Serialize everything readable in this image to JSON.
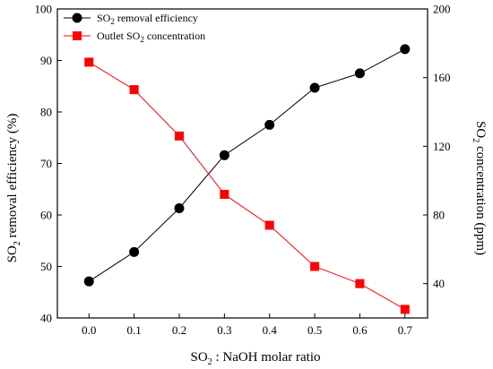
{
  "chart_data": {
    "type": "line",
    "x": [
      0.0,
      0.1,
      0.2,
      0.3,
      0.4,
      0.5,
      0.6,
      0.7
    ],
    "x_tick_labels": [
      "0.0",
      "0.1",
      "0.2",
      "0.3",
      "0.4",
      "0.5",
      "0.6",
      "0.7"
    ],
    "xlim": [
      -0.07,
      0.75
    ],
    "xlabel": {
      "base": "SO",
      "sub": "2",
      "rest": " : NaOH molar ratio"
    },
    "y_left": {
      "label": {
        "base": "SO",
        "sub": "2",
        "rest": " removal efficiency (%)"
      },
      "ylim": [
        40,
        100
      ],
      "ticks": [
        40,
        50,
        60,
        70,
        80,
        90,
        100
      ]
    },
    "y_right": {
      "label": {
        "base": "SO",
        "sub": "2",
        "rest": " concentration (ppm)"
      },
      "ylim": [
        20,
        200
      ],
      "ticks": [
        40,
        80,
        120,
        160,
        200
      ]
    },
    "series": [
      {
        "name": {
          "base": "SO",
          "sub": "2",
          "rest": " removal efficiency"
        },
        "axis": "left",
        "marker": "circle",
        "color": "#000000",
        "values": [
          47.1,
          52.8,
          61.3,
          71.6,
          77.5,
          84.7,
          87.5,
          92.2
        ]
      },
      {
        "name": {
          "base": "Outlet SO",
          "sub": "2",
          "rest": " concentration"
        },
        "axis": "right",
        "marker": "square",
        "color": "#ff0000",
        "values": [
          169,
          153,
          126,
          92,
          74,
          50,
          40,
          25
        ]
      }
    ],
    "legend_position": "top-left",
    "grid": false
  }
}
